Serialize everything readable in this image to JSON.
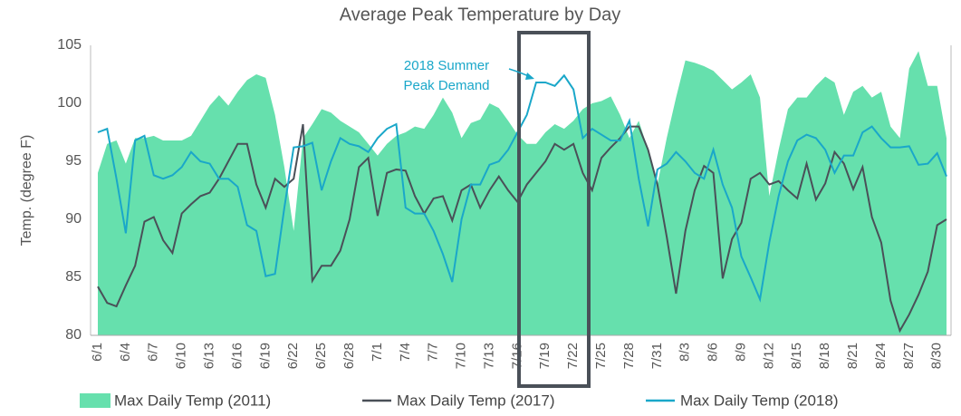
{
  "chart_data": {
    "type": "line",
    "title": "Average Peak Temperature by Day",
    "y_label": "Temp. (degree F)",
    "annotation": [
      "2018 Summer",
      "Peak Demand"
    ],
    "ylim": [
      80,
      105
    ],
    "yticks": [
      80,
      85,
      90,
      95,
      100,
      105
    ],
    "grid": false,
    "legend": "bottom",
    "categories": [
      "6/1",
      null,
      null,
      "6/4",
      null,
      null,
      "6/7",
      null,
      null,
      "6/10",
      null,
      null,
      "6/13",
      null,
      null,
      "6/16",
      null,
      null,
      "6/19",
      null,
      null,
      "6/22",
      null,
      null,
      "6/25",
      null,
      null,
      "6/28",
      null,
      null,
      "7/1",
      null,
      null,
      "7/4",
      null,
      null,
      "7/7",
      null,
      null,
      "7/10",
      null,
      null,
      "7/13",
      null,
      null,
      "7/16",
      null,
      null,
      "7/19",
      null,
      null,
      "7/22",
      null,
      null,
      "7/25",
      null,
      null,
      "7/28",
      null,
      null,
      "7/31",
      null,
      null,
      "8/3",
      null,
      null,
      "8/6",
      null,
      null,
      "8/9",
      null,
      null,
      "8/12",
      null,
      null,
      "8/15",
      null,
      null,
      "8/18",
      null,
      null,
      "8/21",
      null,
      null,
      "8/24",
      null,
      null,
      "8/27",
      null,
      null,
      "8/30",
      null
    ],
    "series": [
      {
        "name": "Max Daily Temp (2011)",
        "style": "area",
        "color": "#66e0ad",
        "values": [
          94,
          96.5,
          96.8,
          94.8,
          97,
          97,
          97.2,
          96.8,
          96.8,
          96.8,
          97.2,
          98.5,
          99.8,
          100.7,
          99.8,
          101,
          102,
          102.5,
          102.2,
          99,
          94.5,
          89,
          97,
          98.2,
          99.5,
          99.2,
          98.5,
          98,
          97.5,
          96.5,
          95.5,
          96.5,
          97.2,
          97.5,
          98,
          97.8,
          99,
          100.5,
          99.2,
          97,
          98.3,
          98.6,
          100,
          99.6,
          98.5,
          97.3,
          96.5,
          96.5,
          97.5,
          98.2,
          97.8,
          98.5,
          99.5,
          100,
          100.2,
          100.6,
          99,
          97,
          98.5,
          96,
          93,
          97,
          100.5,
          103.7,
          103.5,
          103.2,
          102.8,
          102,
          101.2,
          101.8,
          102.5,
          100.5,
          92,
          96,
          99.5,
          100.5,
          100.5,
          101.5,
          102.3,
          101.8,
          99,
          101,
          101.5,
          100.5,
          101,
          98,
          97,
          103,
          104.5,
          101.5,
          101.5,
          97
        ]
      },
      {
        "name": "Max Daily Temp (2017)",
        "style": "line",
        "color": "#4a5058",
        "values": [
          84.2,
          82.8,
          82.5,
          84.3,
          86,
          89.8,
          90.2,
          88.2,
          87.1,
          90.5,
          91.3,
          92,
          92.3,
          93.5,
          95,
          96.5,
          96.5,
          93,
          91,
          93.5,
          92.8,
          93.5,
          98.2,
          84.7,
          86,
          86,
          87.3,
          90,
          94.5,
          95.3,
          90.3,
          94,
          94.3,
          94.2,
          92,
          90.5,
          91.8,
          92,
          89.9,
          92.5,
          93,
          91,
          92.5,
          93.7,
          92.5,
          91.5,
          93,
          94,
          95,
          96.5,
          96,
          96.5,
          94,
          92.5,
          95.3,
          96.2,
          97,
          98,
          98,
          96,
          93,
          88.5,
          83.6,
          89,
          92.5,
          94.6,
          94,
          84.9,
          88.3,
          89.7,
          93.5,
          94,
          93,
          93.3,
          92.5,
          91.8,
          94.8,
          91.7,
          93.1,
          95.8,
          94.8,
          92.6,
          94.5,
          90.2,
          88,
          83,
          80.4,
          81.8,
          83.5,
          85.5,
          89.5,
          90
        ]
      },
      {
        "name": "Max Daily Temp (2018)",
        "style": "line",
        "color": "#1aa7c9",
        "values": [
          97.5,
          97.8,
          93.5,
          88.8,
          96.8,
          97.2,
          93.8,
          93.5,
          93.8,
          94.5,
          95.8,
          95,
          94.8,
          93.5,
          93.5,
          92.8,
          89.5,
          89,
          85.1,
          85.3,
          91,
          96.2,
          96.3,
          96.6,
          92.5,
          95,
          97,
          96.5,
          96.3,
          95.8,
          97,
          97.8,
          98.2,
          91,
          90.5,
          90.5,
          89,
          87,
          84.6,
          90,
          93,
          93,
          94.7,
          95,
          96,
          97.5,
          99,
          101.8,
          101.8,
          101.5,
          102.4,
          101.2,
          97,
          97.8,
          97.3,
          96.8,
          96.8,
          98.5,
          93.5,
          89.4,
          94.3,
          94.8,
          95.8,
          95,
          94,
          93.5,
          96,
          93,
          91,
          86.8,
          85,
          83.1,
          88,
          92,
          95,
          96.8,
          97.3,
          97,
          96,
          94,
          95.5,
          95.5,
          97.5,
          98,
          97,
          96.2,
          96.2,
          96.3,
          94.7,
          94.8,
          95.7,
          93.7
        ]
      }
    ]
  }
}
